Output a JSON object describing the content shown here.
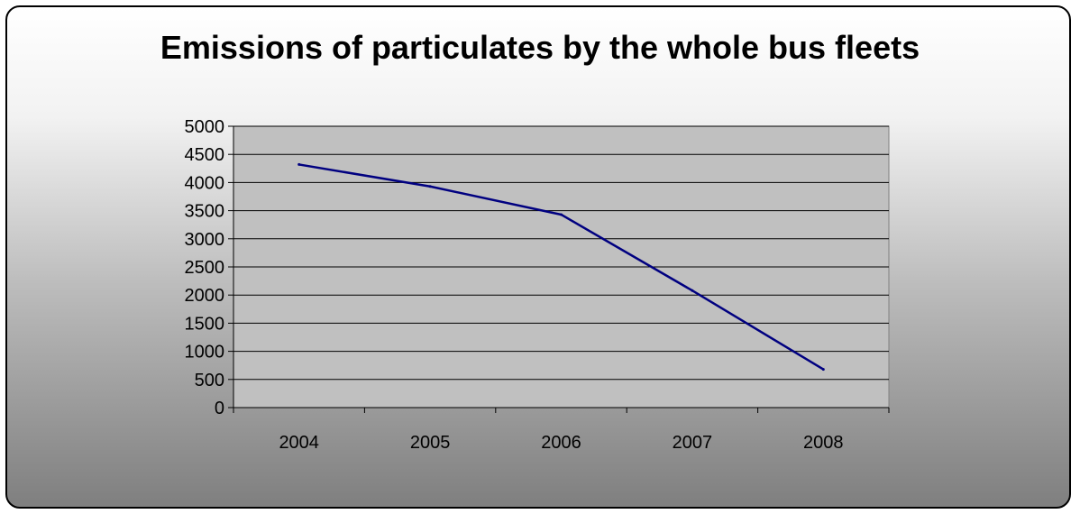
{
  "chart_data": {
    "type": "line",
    "title": "Emissions of particulates by the whole bus fleets",
    "xlabel": "",
    "ylabel": "",
    "categories": [
      "2004",
      "2005",
      "2006",
      "2007",
      "2008"
    ],
    "series": [
      {
        "values": [
          4320,
          3930,
          3430,
          2080,
          680
        ]
      }
    ],
    "ylim": [
      0,
      5000
    ],
    "yticks": [
      "0",
      "500",
      "1000",
      "1500",
      "2000",
      "2500",
      "3000",
      "3500",
      "4000",
      "4500",
      "5000"
    ],
    "grid": true,
    "legend": "none",
    "colors": {
      "line": "#000080",
      "plot_area": "#c0c0c0",
      "gridline": "#000000"
    }
  }
}
